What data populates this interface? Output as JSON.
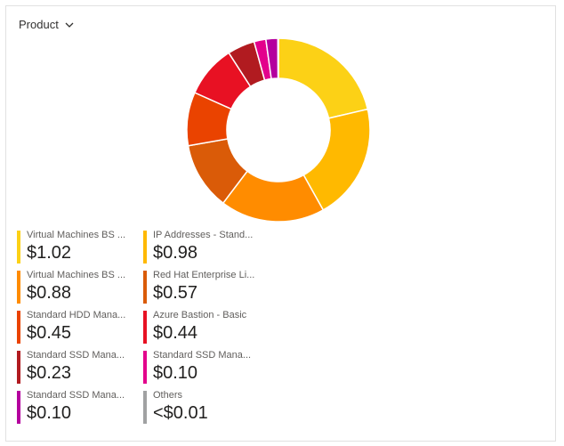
{
  "selector": {
    "label": "Product",
    "icon": "chevron-down-icon"
  },
  "chart_data": {
    "type": "pie",
    "donut": true,
    "title": "",
    "slices": [
      {
        "label": "Virtual Machines BS ...",
        "value": 1.02,
        "display": "$1.02",
        "color": "#FCD116"
      },
      {
        "label": "IP Addresses - Stand...",
        "value": 0.98,
        "display": "$0.98",
        "color": "#FFB900"
      },
      {
        "label": "Virtual Machines BS ...",
        "value": 0.88,
        "display": "$0.88",
        "color": "#FF8C00"
      },
      {
        "label": "Red Hat Enterprise Li...",
        "value": 0.57,
        "display": "$0.57",
        "color": "#DA5B08"
      },
      {
        "label": "Standard HDD Mana...",
        "value": 0.45,
        "display": "$0.45",
        "color": "#EA4300"
      },
      {
        "label": "Azure Bastion - Basic",
        "value": 0.44,
        "display": "$0.44",
        "color": "#E81123"
      },
      {
        "label": "Standard SSD Mana...",
        "value": 0.23,
        "display": "$0.23",
        "color": "#B11B20"
      },
      {
        "label": "Standard SSD Mana...",
        "value": 0.1,
        "display": "$0.10",
        "color": "#E3008C"
      },
      {
        "label": "Standard SSD Mana...",
        "value": 0.1,
        "display": "$0.10",
        "color": "#B4009E"
      },
      {
        "label": "Others",
        "value": 0.005,
        "display": "<$0.01",
        "color": "#A0A1A2"
      }
    ]
  }
}
